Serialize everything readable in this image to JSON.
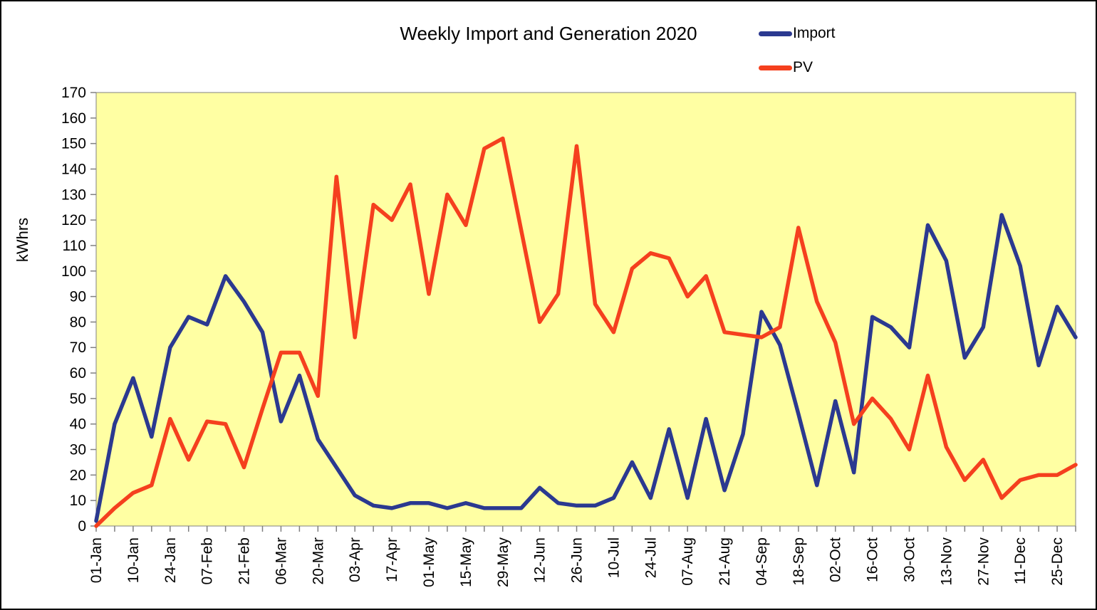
{
  "chart_data": {
    "type": "line",
    "title": "Weekly Import and Generation 2020",
    "xlabel": "",
    "ylabel": "kWhrs",
    "ylim": [
      0,
      170
    ],
    "y_tick_step": 10,
    "grid": false,
    "legend_position": "top-right",
    "plot_bg_color": "#FFFFA3",
    "axis_color": "#808080",
    "x_labels": [
      "01-Jan",
      "10-Jan",
      "24-Jan",
      "07-Feb",
      "21-Feb",
      "06-Mar",
      "20-Mar",
      "03-Apr",
      "17-Apr",
      "01-May",
      "15-May",
      "29-May",
      "12-Jun",
      "26-Jun",
      "10-Jul",
      "24-Jul",
      "07-Aug",
      "21-Aug",
      "04-Sep",
      "18-Sep",
      "02-Oct",
      "16-Oct",
      "30-Oct",
      "13-Nov",
      "27-Nov",
      "11-Dec",
      "25-Dec"
    ],
    "x_label_every_n_points": 2,
    "series": [
      {
        "name": "Import",
        "color": "#2B3990",
        "values": [
          2,
          40,
          58,
          35,
          70,
          82,
          79,
          98,
          88,
          76,
          41,
          59,
          34,
          23,
          12,
          8,
          7,
          9,
          9,
          7,
          9,
          7,
          7,
          7,
          15,
          9,
          8,
          8,
          11,
          25,
          11,
          38,
          11,
          42,
          14,
          36,
          84,
          71,
          44,
          16,
          49,
          21,
          82,
          78,
          70,
          118,
          104,
          66,
          78,
          122,
          102,
          63,
          86,
          74
        ]
      },
      {
        "name": "PV",
        "color": "#F5401E",
        "values": [
          0,
          7,
          13,
          16,
          42,
          26,
          41,
          40,
          23,
          46,
          68,
          68,
          51,
          137,
          74,
          126,
          120,
          134,
          91,
          130,
          118,
          148,
          152,
          116,
          80,
          91,
          149,
          87,
          76,
          101,
          107,
          105,
          90,
          98,
          76,
          75,
          74,
          78,
          117,
          88,
          72,
          40,
          50,
          42,
          30,
          59,
          31,
          18,
          26,
          11,
          18,
          20,
          20,
          24
        ]
      }
    ]
  }
}
